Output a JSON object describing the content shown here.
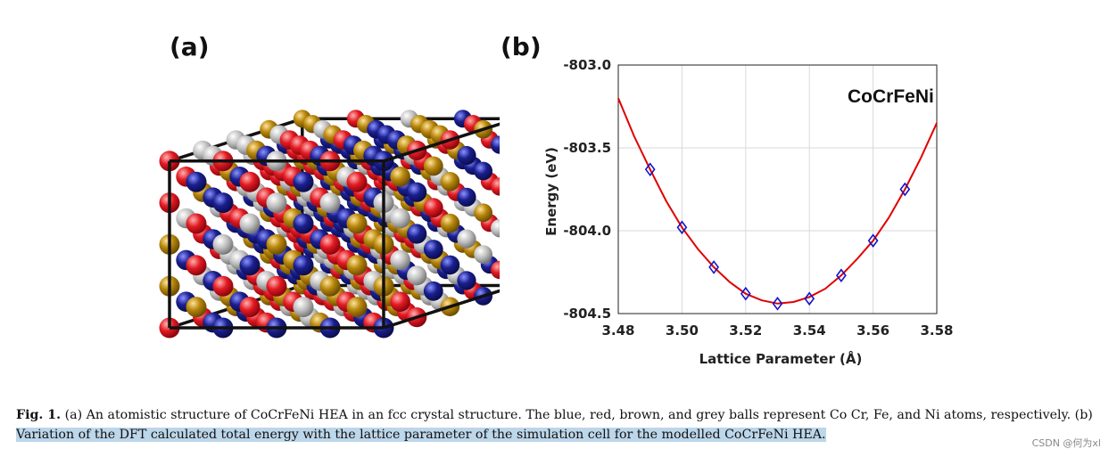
{
  "panel_a": {
    "label": "(a)",
    "atom_colors": {
      "Co": "#1a1f8f",
      "Cr": "#e21b23",
      "Fe": "#b7860b",
      "Ni": "#b9b9b9"
    }
  },
  "panel_b": {
    "label": "(b)"
  },
  "chart_data": {
    "type": "scatter",
    "title": "",
    "annotation": "CoCrFeNi",
    "xlabel": "Lattice Parameter (Å)",
    "ylabel": "Energy (eV)",
    "xlim": [
      3.48,
      3.58
    ],
    "ylim": [
      -804.5,
      -803.0
    ],
    "xticks": [
      "3.48",
      "3.50",
      "3.52",
      "3.54",
      "3.56",
      "3.58"
    ],
    "yticks": [
      "-803.0",
      "-803.5",
      "-804.0",
      "-804.5"
    ],
    "grid": true,
    "series": [
      {
        "name": "DFT data",
        "marker": "diamond",
        "color": "#1414c8",
        "x": [
          3.49,
          3.5,
          3.51,
          3.52,
          3.53,
          3.54,
          3.55,
          3.56,
          3.57
        ],
        "y": [
          -803.63,
          -803.98,
          -804.22,
          -804.38,
          -804.44,
          -804.41,
          -804.27,
          -804.06,
          -803.75
        ]
      },
      {
        "name": "Fit",
        "style": "line",
        "color": "#e00000",
        "x": [
          3.48,
          3.485,
          3.49,
          3.495,
          3.5,
          3.505,
          3.51,
          3.515,
          3.52,
          3.525,
          3.53,
          3.535,
          3.54,
          3.545,
          3.55,
          3.555,
          3.56,
          3.565,
          3.57,
          3.575,
          3.58
        ],
        "y": [
          -803.2,
          -803.43,
          -803.63,
          -803.82,
          -803.98,
          -804.11,
          -804.22,
          -804.31,
          -804.38,
          -804.42,
          -804.44,
          -804.43,
          -804.4,
          -804.35,
          -804.27,
          -804.17,
          -804.06,
          -803.92,
          -803.75,
          -803.56,
          -803.35
        ]
      }
    ]
  },
  "caption": {
    "fig_number": "Fig. 1.",
    "line1": "(a) An atomistic structure of CoCrFeNi HEA in an fcc crystal structure. The blue, red, brown, and grey balls represent Co Cr, Fe, and Ni atoms, respectively. (b)",
    "line2": "Variation of the DFT calculated total energy with the lattice parameter of the simulation cell for the modelled CoCrFeNi HEA."
  },
  "watermark": "CSDN @何为xl"
}
